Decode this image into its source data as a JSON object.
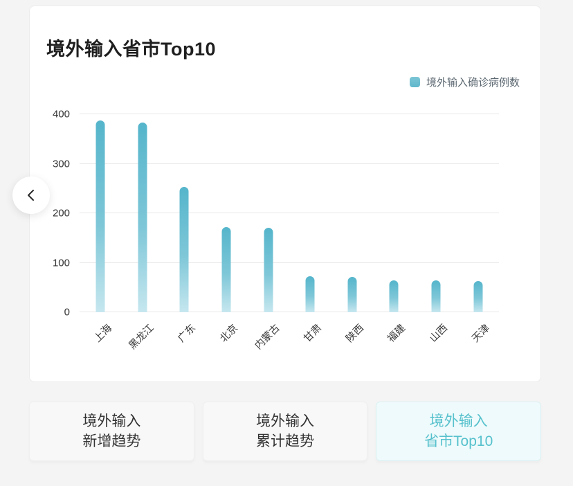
{
  "chart_data": {
    "type": "bar",
    "title": "境外输入省市Top10",
    "legend": [
      "境外输入确诊病例数"
    ],
    "legend_position": "top-right",
    "categories": [
      "上海",
      "黑龙江",
      "广东",
      "北京",
      "内蒙古",
      "甘肃",
      "陕西",
      "福建",
      "山西",
      "天津"
    ],
    "values": [
      388,
      383,
      253,
      172,
      170,
      73,
      72,
      65,
      64,
      63
    ],
    "xlabel": "",
    "ylabel": "",
    "ylim": [
      0,
      400
    ],
    "yticks": [
      0,
      100,
      200,
      300,
      400
    ],
    "grid": true,
    "bar_color_top": "#55b5cb",
    "bar_color_bottom": "#c6e7ef"
  },
  "nav": {
    "prev_label": "‹"
  },
  "tabs": [
    {
      "line1": "境外输入",
      "line2": "新增趋势",
      "active": false
    },
    {
      "line1": "境外输入",
      "line2": "累计趋势",
      "active": false
    },
    {
      "line1": "境外输入",
      "line2": "省市Top10",
      "active": true
    }
  ],
  "colors": {
    "accent": "#56c1cd",
    "active_tab_bg": "#eefafb",
    "bar_teal": "#5fb7cb",
    "page_bg": "#f4f4f4"
  }
}
